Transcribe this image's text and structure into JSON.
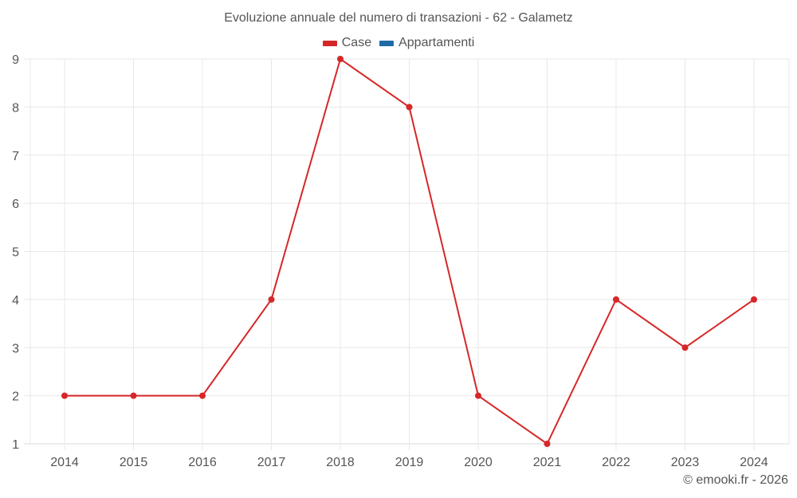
{
  "title": "Evoluzione annuale del numero di transazioni - 62 - Galametz",
  "legend": [
    {
      "label": "Case",
      "color": "#d62728"
    },
    {
      "label": "Appartamenti",
      "color": "#1f6aa5"
    }
  ],
  "credit": "© emooki.fr - 2026",
  "colors": {
    "grid": "#e8e8e8",
    "axis": "#d9d9d9",
    "text": "#555555",
    "series_case": "#d62728"
  },
  "chart_data": {
    "type": "line",
    "title": "Evoluzione annuale del numero di transazioni - 62 - Galametz",
    "xlabel": "",
    "ylabel": "",
    "categories": [
      "2014",
      "2015",
      "2016",
      "2017",
      "2018",
      "2019",
      "2020",
      "2021",
      "2022",
      "2023",
      "2024"
    ],
    "series": [
      {
        "name": "Case",
        "color": "#d62728",
        "values": [
          2,
          2,
          2,
          4,
          9,
          8,
          2,
          1,
          4,
          3,
          4
        ]
      },
      {
        "name": "Appartamenti",
        "color": "#1f6aa5",
        "values": []
      }
    ],
    "yticks": [
      1,
      2,
      3,
      4,
      5,
      6,
      7,
      8,
      9
    ],
    "ylim": [
      1,
      9
    ],
    "grid": true,
    "legend_position": "top"
  }
}
